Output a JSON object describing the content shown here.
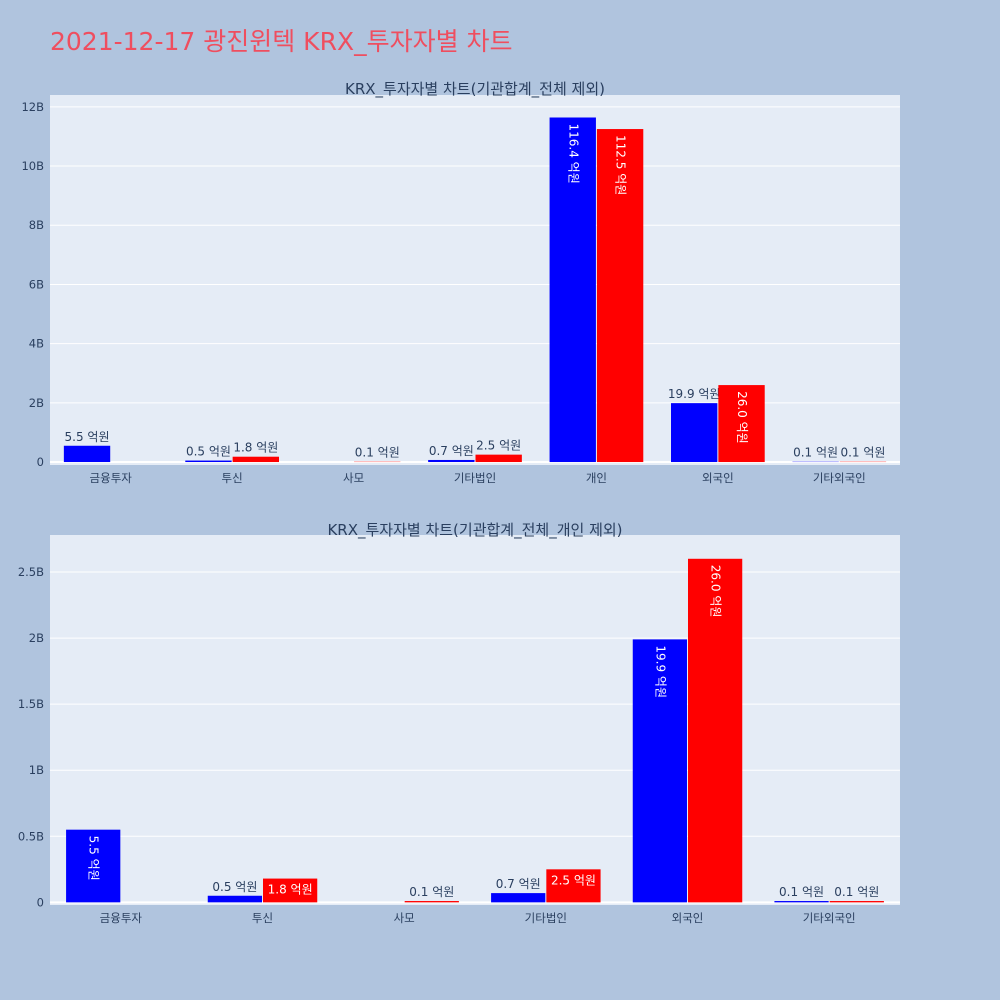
{
  "page": {
    "title": "2021-12-17 광진윈텍 KRX_투자자별 차트"
  },
  "colors": {
    "buy": "#0000ff",
    "sell": "#ff0000",
    "plot_bg": "#e5ecf6",
    "page_bg": "#b0c4de",
    "title": "#ef4e5f"
  },
  "chart_data": [
    {
      "type": "bar",
      "title": "KRX_투자자별 차트(기관합계_전체 제외)",
      "categories": [
        "금융투자",
        "투신",
        "사모",
        "기타법인",
        "개인",
        "외국인",
        "기타외국인"
      ],
      "series": [
        {
          "values": [
            550000000,
            50000000,
            0,
            70000000,
            11640000000,
            1990000000,
            10000000
          ],
          "labels": [
            "5.5 억원",
            "0.5 억원",
            "",
            "0.7 억원",
            "116.4 억원",
            "19.9 억원",
            "0.1 억원"
          ]
        },
        {
          "values": [
            0,
            180000000,
            10000000,
            250000000,
            11250000000,
            2600000000,
            10000000
          ],
          "labels": [
            "",
            "1.8 억원",
            "0.1 억원",
            "2.5 억원",
            "112.5 억원",
            "26.0 억원",
            "0.1 억원"
          ]
        }
      ],
      "ylim": [
        -100000000,
        12400000000
      ],
      "yticks": [
        0,
        2000000000,
        4000000000,
        6000000000,
        8000000000,
        10000000000,
        12000000000
      ],
      "ytick_labels": [
        "0",
        "2B",
        "4B",
        "6B",
        "8B",
        "10B",
        "12B"
      ]
    },
    {
      "type": "bar",
      "title": "KRX_투자자별 차트(기관합계_전체_개인 제외)",
      "categories": [
        "금융투자",
        "투신",
        "사모",
        "기타법인",
        "외국인",
        "기타외국인"
      ],
      "series": [
        {
          "values": [
            550000000,
            50000000,
            0,
            70000000,
            1990000000,
            10000000
          ],
          "labels": [
            "5.5 억원",
            "0.5 억원",
            "",
            "0.7 억원",
            "19.9 억원",
            "0.1 억원"
          ]
        },
        {
          "values": [
            0,
            180000000,
            10000000,
            250000000,
            2600000000,
            10000000
          ],
          "labels": [
            "",
            "1.8 억원",
            "0.1 억원",
            "2.5 억원",
            "26.0 억원",
            "0.1 억원"
          ]
        }
      ],
      "ylim": [
        -20000000,
        2780000000
      ],
      "yticks": [
        0,
        500000000,
        1000000000,
        1500000000,
        2000000000,
        2500000000
      ],
      "ytick_labels": [
        "0",
        "0.5B",
        "1B",
        "1.5B",
        "2B",
        "2.5B"
      ]
    }
  ]
}
